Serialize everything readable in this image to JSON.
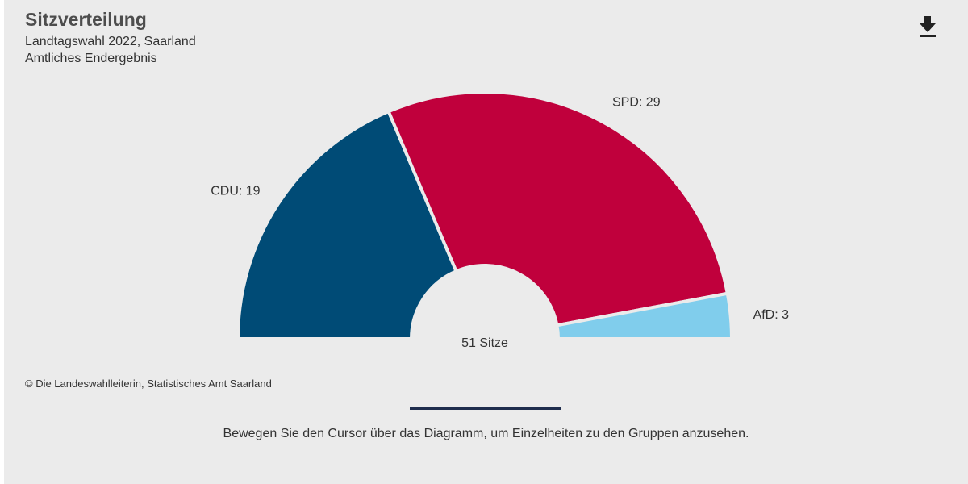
{
  "header": {
    "title": "Sitzverteilung",
    "subtitle_line1": "Landtagswahl 2022, Saarland",
    "subtitle_line2": "Amtliches Endergebnis",
    "download_icon": "download-icon"
  },
  "chart_data": {
    "type": "pie",
    "variant": "semicircle-donut",
    "title": "Sitzverteilung",
    "subtitle": "Landtagswahl 2022, Saarland – Amtliches Endergebnis",
    "center_label": "51 Sitze",
    "total": 51,
    "series": [
      {
        "name": "CDU",
        "value": 19,
        "color": "#004b76",
        "label": "CDU: 19"
      },
      {
        "name": "SPD",
        "value": 29,
        "color": "#c0003c",
        "label": "SPD: 29"
      },
      {
        "name": "AfD",
        "value": 3,
        "color": "#80cdec",
        "label": "AfD: 3"
      }
    ]
  },
  "footer": {
    "credit": "© Die Landeswahlleiterin, Statistisches Amt Saarland",
    "hint": "Bewegen Sie den Cursor über das Diagramm, um Einzelheiten zu den Gruppen anzusehen."
  }
}
